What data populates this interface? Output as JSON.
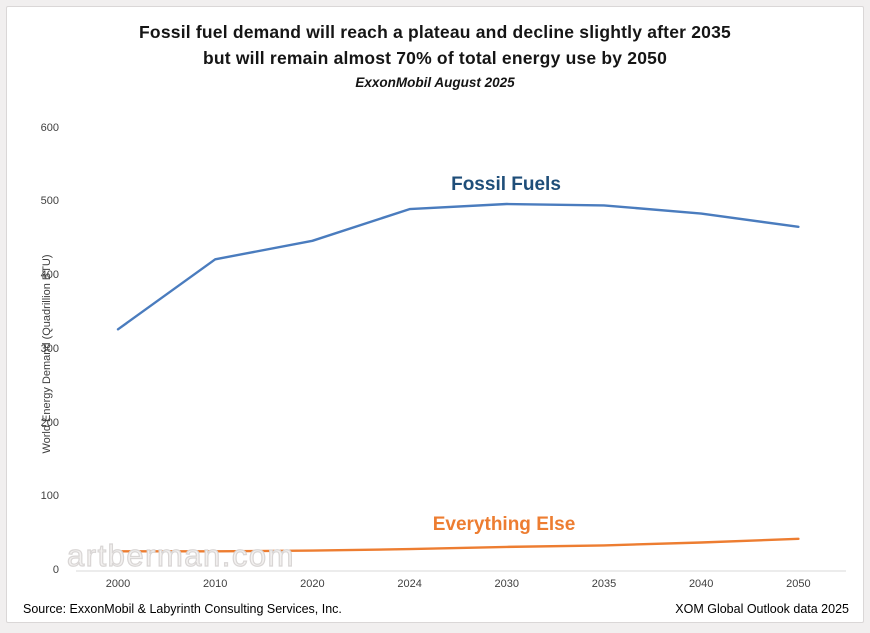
{
  "header": {
    "title_line1": "Fossil fuel demand will reach a plateau and decline slightly after 2035",
    "title_line2": "but will remain almost 70% of total energy use by 2050",
    "subtitle": "ExxonMobil August 2025"
  },
  "footer": {
    "source": "Source: ExxonMobil & Labyrinth Consulting Services, Inc.",
    "note": "XOM Global Outlook data 2025"
  },
  "watermark": "artberman.com",
  "chart_data": {
    "type": "line",
    "categories": [
      "2000",
      "2010",
      "2020",
      "2024",
      "2030",
      "2035",
      "2040",
      "2050"
    ],
    "series": [
      {
        "name": "Fossil Fuels",
        "color": "#4a7cbe",
        "label_color": "#1f4e79",
        "values": [
          327,
          422,
          447,
          490,
          497,
          495,
          484,
          466
        ]
      },
      {
        "name": "Everything Else",
        "color": "#ed7d31",
        "label_color": "#ed7d31",
        "values": [
          26,
          26,
          27,
          29,
          32,
          34,
          38,
          43
        ]
      }
    ],
    "ylabel": "World Energy Demand (Quadrillion BTU)",
    "yticks": [
      0,
      100,
      200,
      300,
      400,
      500,
      600
    ],
    "ylim": [
      0,
      600
    ],
    "grid": false,
    "legend": "inline-series-labels",
    "axis_line_color": "#d9d9d9"
  }
}
